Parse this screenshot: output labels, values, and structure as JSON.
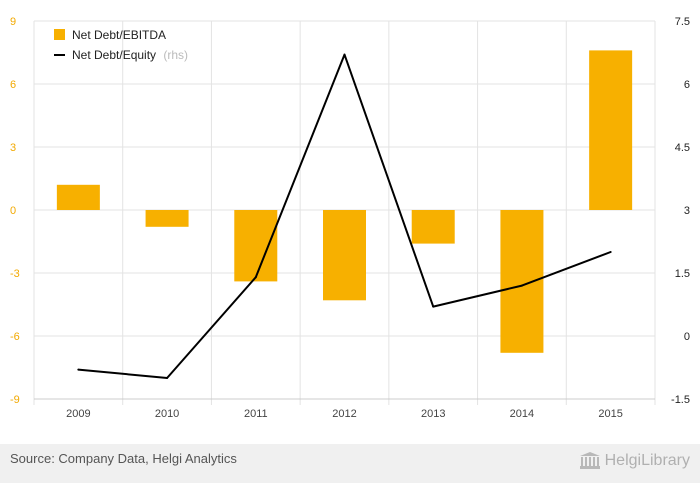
{
  "chart_data": {
    "type": "bar",
    "categories": [
      "2009",
      "2010",
      "2011",
      "2012",
      "2013",
      "2014",
      "2015"
    ],
    "series": [
      {
        "name": "Net Debt/EBITDA",
        "type": "bar",
        "axis": "left",
        "color": "#f7b000",
        "values": [
          1.2,
          -0.8,
          -3.4,
          -4.3,
          -1.6,
          -6.8,
          7.6
        ]
      },
      {
        "name": "Net Debt/Equity",
        "type": "line",
        "axis": "right",
        "color": "#000000",
        "values": [
          -0.8,
          -1.0,
          1.4,
          6.7,
          0.7,
          1.2,
          2.0
        ]
      }
    ],
    "legend": [
      {
        "label": "Net Debt/EBITDA",
        "note": ""
      },
      {
        "label": "Net Debt/Equity",
        "note": "(rhs)"
      }
    ],
    "y_left": {
      "min": -9,
      "max": 9,
      "ticks": [
        "9",
        "6",
        "3",
        "0",
        "-3",
        "-6",
        "-9"
      ],
      "color": "#f2a900"
    },
    "y_right": {
      "min": -1.5,
      "max": 7.5,
      "ticks": [
        "7.5",
        "6",
        "4.5",
        "3",
        "1.5",
        "0",
        "-1.5"
      ]
    },
    "legend_position": "top-left",
    "grid": true
  },
  "footer": {
    "source": "Source: Company Data, Helgi Analytics",
    "brand": "HelgiLibrary"
  }
}
